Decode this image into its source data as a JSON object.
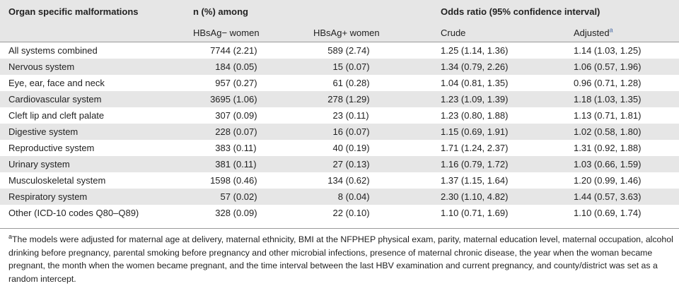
{
  "header": {
    "col0": "Organ specific malformations",
    "n_among": "n (%) among",
    "odds": "Odds ratio (95% confidence interval)",
    "neg": "HBsAg− women",
    "pos": "HBsAg+ women",
    "crude": "Crude",
    "adjusted": "Adjusted",
    "adjusted_mark": "a"
  },
  "rows": [
    {
      "label": "All systems combined",
      "neg": "7744 (2.21)",
      "pos": "589 (2.74)",
      "crude": "1.25 (1.14, 1.36)",
      "adjusted": "1.14 (1.03, 1.25)"
    },
    {
      "label": "Nervous system",
      "neg": "184 (0.05)",
      "pos": "15 (0.07)",
      "crude": "1.34 (0.79, 2.26)",
      "adjusted": "1.06 (0.57, 1.96)"
    },
    {
      "label": "Eye, ear, face and neck",
      "neg": "957 (0.27)",
      "pos": "61 (0.28)",
      "crude": "1.04 (0.81, 1.35)",
      "adjusted": "0.96 (0.71, 1.28)"
    },
    {
      "label": "Cardiovascular system",
      "neg": "3695 (1.06)",
      "pos": "278 (1.29)",
      "crude": "1.23 (1.09, 1.39)",
      "adjusted": "1.18 (1.03, 1.35)"
    },
    {
      "label": "Cleft lip and cleft palate",
      "neg": "307 (0.09)",
      "pos": "23 (0.11)",
      "crude": "1.23 (0.80, 1.88)",
      "adjusted": "1.13 (0.71, 1.81)"
    },
    {
      "label": "Digestive system",
      "neg": "228 (0.07)",
      "pos": "16 (0.07)",
      "crude": "1.15 (0.69, 1.91)",
      "adjusted": "1.02 (0.58, 1.80)"
    },
    {
      "label": "Reproductive system",
      "neg": "383 (0.11)",
      "pos": "40 (0.19)",
      "crude": "1.71 (1.24, 2.37)",
      "adjusted": "1.31 (0.92, 1.88)"
    },
    {
      "label": "Urinary system",
      "neg": "381 (0.11)",
      "pos": "27 (0.13)",
      "crude": "1.16 (0.79, 1.72)",
      "adjusted": "1.03 (0.66, 1.59)"
    },
    {
      "label": "Musculoskeletal system",
      "neg": "1598 (0.46)",
      "pos": "134 (0.62)",
      "crude": "1.37 (1.15, 1.64)",
      "adjusted": "1.20 (0.99, 1.46)"
    },
    {
      "label": "Respiratory system",
      "neg": "57 (0.02)",
      "pos": "8 (0.04)",
      "crude": "2.30 (1.10, 4.82)",
      "adjusted": "1.44 (0.57, 3.63)"
    },
    {
      "label": "Other (ICD-10 codes Q80–Q89)",
      "neg": "328 (0.09)",
      "pos": "22 (0.10)",
      "crude": "1.10 (0.71, 1.69)",
      "adjusted": "1.10 (0.69, 1.74)"
    }
  ],
  "footnote": {
    "mark": "a",
    "text": "The models were adjusted for maternal age at delivery, maternal ethnicity, BMI at the NFPHEP physical exam, parity, maternal education level, maternal occupation, alcohol drinking before pregnancy, parental smoking before pregnancy and other microbial infections, presence of maternal chronic disease, the year when the woman became pregnant, the month when the women became pregnant, and the time interval between the last HBV examination and current pregnancy, and county/district was set as a random intercept."
  }
}
